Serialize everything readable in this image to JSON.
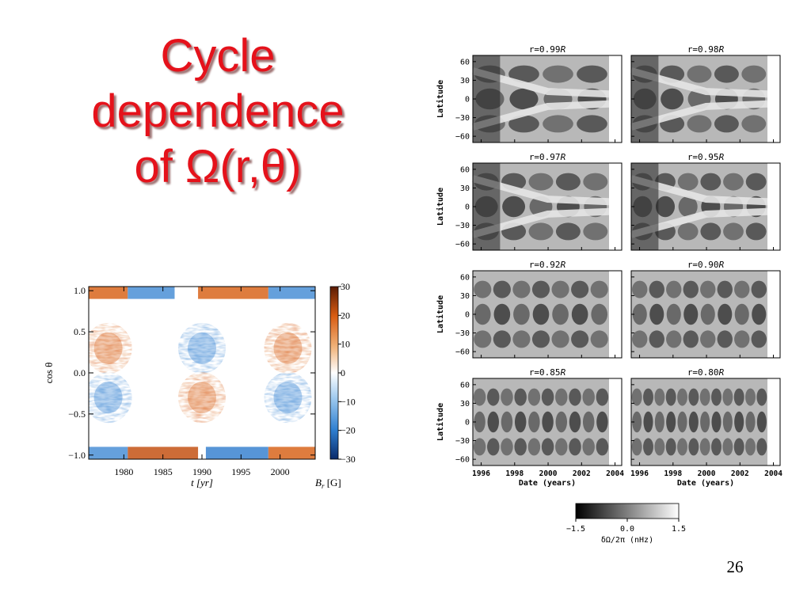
{
  "slide": {
    "title_lines": [
      "Cycle",
      "dependence",
      "of Ω(r,θ)"
    ],
    "page_number": "26"
  },
  "chart_data": [
    {
      "type": "heatmap",
      "title": "",
      "xlabel": "t [yr]",
      "ylabel": "cos θ",
      "x_ticks": [
        "1980",
        "1985",
        "1990",
        "1995",
        "2000"
      ],
      "x_tick_values": [
        1980,
        1985,
        1990,
        1995,
        2000
      ],
      "xlim": [
        1975.5,
        2004.5
      ],
      "y_ticks": [
        "1.0",
        "0.5",
        "0.0",
        "−0.5",
        "−1.0"
      ],
      "y_tick_values": [
        1.0,
        0.5,
        0.0,
        -0.5,
        -1.0
      ],
      "ylim": [
        -1.05,
        1.05
      ],
      "colorbar": {
        "label": "B_r [G]",
        "label_main": "B",
        "label_sub": "r",
        "label_unit": " [G]",
        "ticks": [
          "30",
          "20",
          "10",
          "0",
          "−10",
          "−20",
          "−30"
        ],
        "tick_values": [
          30,
          20,
          10,
          0,
          -10,
          -20,
          -30
        ],
        "range": [
          -30,
          30
        ],
        "colormap": [
          "#0a2a6a",
          "#2f7fd0",
          "#9cc8ee",
          "#ffffff",
          "#f0b37a",
          "#d85c12",
          "#5a1c05"
        ]
      },
      "features": [
        {
          "t": 1978,
          "cos_theta": 0.3,
          "polarity": "positive"
        },
        {
          "t": 1978,
          "cos_theta": -0.3,
          "polarity": "negative"
        },
        {
          "t": 1990,
          "cos_theta": 0.3,
          "polarity": "negative"
        },
        {
          "t": 1990,
          "cos_theta": -0.3,
          "polarity": "positive"
        },
        {
          "t": 2001,
          "cos_theta": 0.3,
          "polarity": "positive"
        },
        {
          "t": 2001,
          "cos_theta": -0.3,
          "polarity": "negative"
        }
      ]
    },
    {
      "type": "heatmap",
      "grid": "4x2",
      "xlabel": "Date (years)",
      "ylabel": "Latitude",
      "x_ticks": [
        "1996",
        "1998",
        "2000",
        "2002",
        "2004"
      ],
      "x_tick_values": [
        1996,
        1998,
        2000,
        2002,
        2004
      ],
      "xlim": [
        1995.5,
        2004.4
      ],
      "y_ticks": [
        "60",
        "30",
        "0",
        "−30",
        "−60"
      ],
      "y_tick_values": [
        60,
        30,
        0,
        -30,
        -60
      ],
      "ylim": [
        -70,
        70
      ],
      "panels": [
        {
          "label": "r=0.99",
          "unit": "R",
          "depth_r": 0.99
        },
        {
          "label": "r=0.98",
          "unit": "R",
          "depth_r": 0.98
        },
        {
          "label": "r=0.97",
          "unit": "R",
          "depth_r": 0.97
        },
        {
          "label": "r=0.95",
          "unit": "R",
          "depth_r": 0.95
        },
        {
          "label": "r=0.92",
          "unit": "R",
          "depth_r": 0.92
        },
        {
          "label": "r=0.90",
          "unit": "R",
          "depth_r": 0.9
        },
        {
          "label": "r=0.85",
          "unit": "R",
          "depth_r": 0.85
        },
        {
          "label": "r=0.80",
          "unit": "R",
          "depth_r": 0.8
        }
      ],
      "colorbar": {
        "label": "δΩ/2π (nHz)",
        "ticks": [
          "−1.5",
          "0.0",
          "1.5"
        ],
        "tick_values": [
          -1.5,
          0.0,
          1.5
        ],
        "range": [
          -1.5,
          1.5
        ],
        "colormap": [
          "#000000",
          "#ffffff"
        ]
      }
    }
  ]
}
